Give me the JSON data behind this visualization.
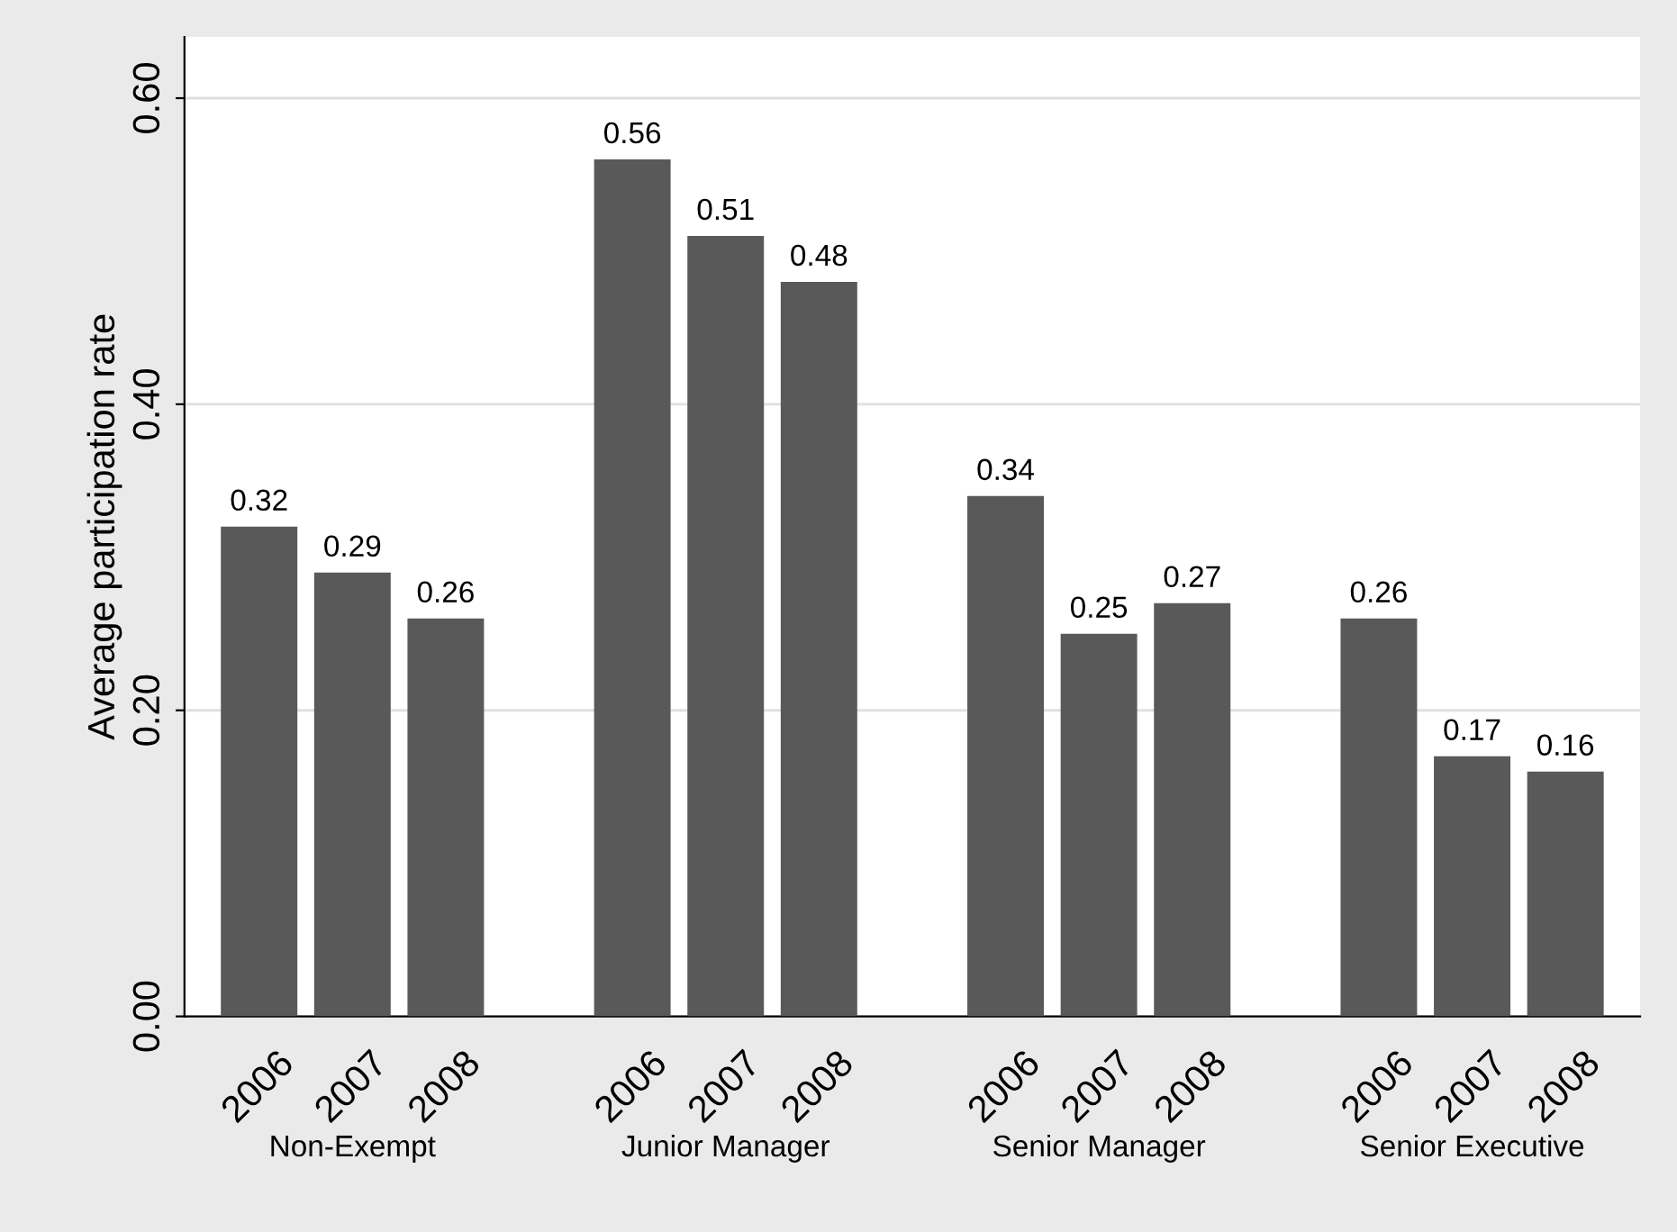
{
  "chart_data": {
    "type": "bar",
    "categories": [
      "2006",
      "2007",
      "2008",
      null,
      "2006",
      "2007",
      "2008",
      null,
      "2006",
      "2007",
      "2008",
      null,
      "2006",
      "2007",
      "2008"
    ],
    "values": [
      0.32,
      0.29,
      0.26,
      null,
      0.56,
      0.51,
      0.48,
      null,
      0.34,
      0.25,
      0.27,
      null,
      0.26,
      0.17,
      0.16
    ],
    "color": "#595959",
    "data_labels": true,
    "ylabel": "Average participation rate",
    "ylim": [
      0,
      0.64
    ],
    "yticks": [
      {
        "value": 0,
        "label": "0.00"
      },
      {
        "value": 0.2,
        "label": "0.20"
      },
      {
        "value": 0.4,
        "label": "0.40"
      },
      {
        "value": 0.6,
        "label": "0.60"
      }
    ],
    "grid": "y",
    "annotations": [
      "Non-Exempt",
      "Junior Manager",
      "Senior Manager",
      "Senior Executive"
    ]
  }
}
